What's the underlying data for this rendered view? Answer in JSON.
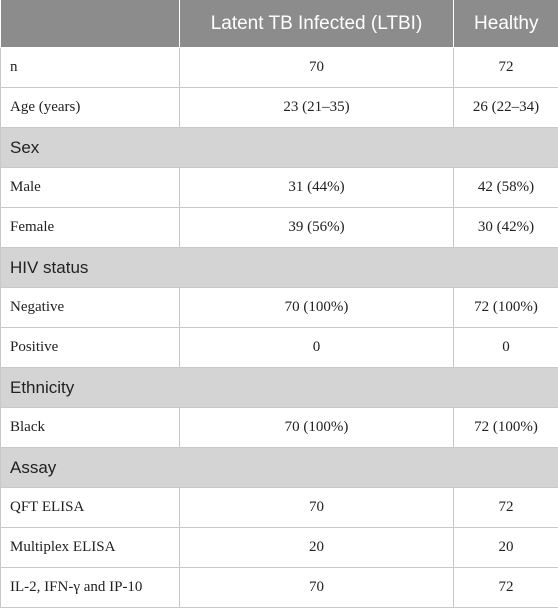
{
  "header": {
    "col1": "",
    "col2": "Latent TB Infected (LTBI)",
    "col3": "Healthy"
  },
  "rows": [
    {
      "label": "n",
      "ltbi": "70",
      "healthy": "72"
    },
    {
      "label": "Age (years)",
      "ltbi": "23 (21–35)",
      "healthy": "26 (22–34)"
    },
    {
      "section": "Sex"
    },
    {
      "label": "Male",
      "ltbi": "31 (44%)",
      "healthy": "42 (58%)"
    },
    {
      "label": "Female",
      "ltbi": "39 (56%)",
      "healthy": "30 (42%)"
    },
    {
      "section": "HIV status"
    },
    {
      "label": "Negative",
      "ltbi": "70 (100%)",
      "healthy": "72 (100%)"
    },
    {
      "label": "Positive",
      "ltbi": "0",
      "healthy": "0"
    },
    {
      "section": "Ethnicity"
    },
    {
      "label": "Black",
      "ltbi": "70 (100%)",
      "healthy": "72 (100%)"
    },
    {
      "section": "Assay"
    },
    {
      "label": "QFT ELISA",
      "ltbi": "70",
      "healthy": "72"
    },
    {
      "label": "Multiplex ELISA",
      "ltbi": "20",
      "healthy": "20"
    },
    {
      "label": "IL-2, IFN-γ and IP-10",
      "ltbi": "70",
      "healthy": "72"
    }
  ]
}
